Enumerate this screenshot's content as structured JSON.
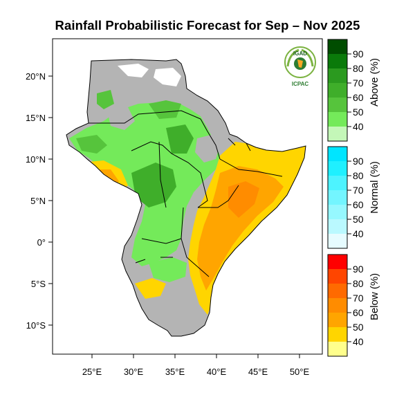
{
  "title": "Rainfall Probabilistic Forecast for Sep – Nov 2025",
  "logo": {
    "org_top": "IGAD",
    "org_bottom": "ICPAC"
  },
  "axes": {
    "lon_ticks": [
      "25°E",
      "30°E",
      "35°E",
      "40°E",
      "45°E",
      "50°E"
    ],
    "lat_ticks": [
      "20°N",
      "15°N",
      "10°N",
      "5°N",
      "0°",
      "5°S",
      "10°S"
    ]
  },
  "legend": {
    "above": {
      "title": "Above (%)",
      "labels": [
        "90",
        "80",
        "70",
        "60",
        "50",
        "40"
      ],
      "colors": [
        "#004d00",
        "#0a7a0a",
        "#2b9a1f",
        "#3fae2a",
        "#56c43c",
        "#74ea5a",
        "#c4f7b8"
      ]
    },
    "normal": {
      "title": "Normal (%)",
      "labels": [
        "90",
        "80",
        "70",
        "60",
        "50",
        "40"
      ],
      "colors": [
        "#00e5ff",
        "#1ff0ff",
        "#4df3ff",
        "#73f5ff",
        "#96f8ff",
        "#baf9ff",
        "#e6fcff"
      ]
    },
    "below": {
      "title": "Below (%)",
      "labels": [
        "90",
        "80",
        "70",
        "60",
        "50",
        "40"
      ],
      "colors": [
        "#ff0000",
        "#ff4500",
        "#ff6a00",
        "#ff8c00",
        "#ffa500",
        "#ffd500",
        "#ffff8c"
      ]
    }
  },
  "map_colors": {
    "no_signal": "#b4b4b4",
    "above_light": "#74ea5a",
    "above_mid": "#56c43c",
    "above_dark": "#3fae2a",
    "below_light": "#ffd500",
    "below_mid": "#ffa500",
    "below_dark": "#ff8c00",
    "border": "#000000"
  }
}
